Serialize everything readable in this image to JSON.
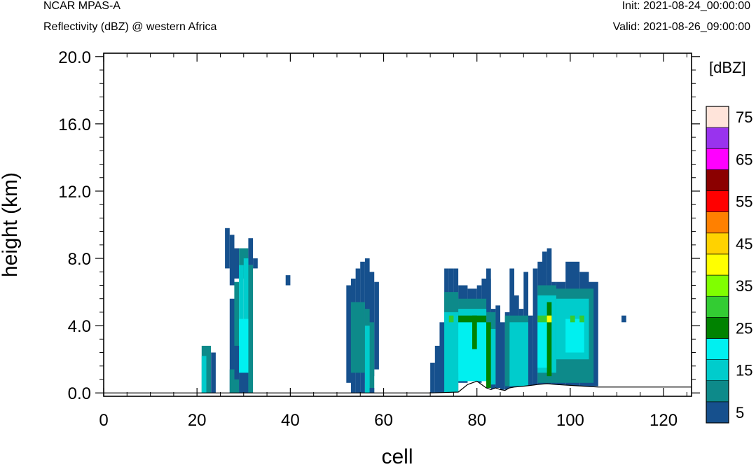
{
  "header": {
    "model": "NCAR MPAS-A",
    "subtitle": "Reflectivity (dBZ) @ western Africa",
    "init": "Init: 2021-08-24_00:00:00",
    "valid": "Valid: 2021-08-26_09:00:00"
  },
  "chart_data": {
    "type": "heatmap",
    "title": "Reflectivity (dBZ) @ western Africa",
    "xlabel": "cell",
    "ylabel": "height (km)",
    "xlim": [
      0,
      126
    ],
    "ylim": [
      -0.2,
      20.2
    ],
    "xticks": [
      "0",
      "20",
      "40",
      "60",
      "80",
      "100",
      "120"
    ],
    "yticks": [
      "0.0",
      "4.0",
      "8.0",
      "12.0",
      "16.0",
      "20.0"
    ],
    "colorbar": {
      "unit": "[dBZ]",
      "levels": [
        5,
        10,
        15,
        20,
        25,
        30,
        35,
        40,
        45,
        50,
        55,
        60,
        65,
        70,
        75
      ],
      "labels": [
        "5",
        "15",
        "25",
        "35",
        "45",
        "55",
        "65",
        "75"
      ],
      "colors": [
        "#16508d",
        "#0d8a8a",
        "#00cccc",
        "#00f0f0",
        "#008200",
        "#33cc33",
        "#80ff00",
        "#ffff00",
        "#ffd200",
        "#ff8000",
        "#ff0000",
        "#8b0000",
        "#ff00ff",
        "#9933ee",
        "#ffe4da"
      ]
    },
    "terrain": [
      [
        0,
        0.0
      ],
      [
        70,
        0.0
      ],
      [
        76,
        0.05
      ],
      [
        78,
        0.5
      ],
      [
        80,
        0.7
      ],
      [
        81,
        0.5
      ],
      [
        82,
        0.3
      ],
      [
        83,
        0.2
      ],
      [
        84,
        0.3
      ],
      [
        85,
        0.2
      ],
      [
        86,
        0.15
      ],
      [
        87,
        0.3
      ],
      [
        88,
        0.35
      ],
      [
        90,
        0.4
      ],
      [
        93,
        0.5
      ],
      [
        95,
        0.55
      ],
      [
        97,
        0.5
      ],
      [
        100,
        0.45
      ],
      [
        103,
        0.4
      ],
      [
        106,
        0.35
      ],
      [
        126,
        0.35
      ]
    ],
    "cells": [
      {
        "x": [
          21,
          23
        ],
        "y": [
          0,
          2.8
        ],
        "dbz": 10
      },
      {
        "x": [
          21,
          22
        ],
        "y": [
          0,
          2.2
        ],
        "dbz": 15
      },
      {
        "x": [
          23,
          24
        ],
        "y": [
          0,
          2.4
        ],
        "dbz": 5
      },
      {
        "x": [
          26,
          27
        ],
        "y": [
          7.4,
          9.8
        ],
        "dbz": 5
      },
      {
        "x": [
          27,
          28
        ],
        "y": [
          6.4,
          9.4
        ],
        "dbz": 5
      },
      {
        "x": [
          28,
          29
        ],
        "y": [
          6.8,
          8.6
        ],
        "dbz": 5
      },
      {
        "x": [
          29,
          31
        ],
        "y": [
          6.8,
          8.6
        ],
        "dbz": 10
      },
      {
        "x": [
          31,
          32
        ],
        "y": [
          7.6,
          9.2
        ],
        "dbz": 5
      },
      {
        "x": [
          32,
          33
        ],
        "y": [
          7.4,
          8.0
        ],
        "dbz": 5
      },
      {
        "x": [
          27,
          28
        ],
        "y": [
          0,
          5.6
        ],
        "dbz": 5
      },
      {
        "x": [
          28,
          29
        ],
        "y": [
          0,
          6.6
        ],
        "dbz": 10
      },
      {
        "x": [
          29,
          30
        ],
        "y": [
          0,
          7.6
        ],
        "dbz": 15
      },
      {
        "x": [
          30,
          31
        ],
        "y": [
          0,
          8.0
        ],
        "dbz": 15
      },
      {
        "x": [
          31,
          32
        ],
        "y": [
          0,
          7.6
        ],
        "dbz": 10
      },
      {
        "x": [
          29,
          31
        ],
        "y": [
          1.2,
          4.4
        ],
        "dbz": 20
      },
      {
        "x": [
          28,
          29
        ],
        "y": [
          0.8,
          2.8
        ],
        "dbz": 5
      },
      {
        "x": [
          27,
          28
        ],
        "y": [
          0,
          1.4
        ],
        "dbz": 10
      },
      {
        "x": [
          29,
          31
        ],
        "y": [
          0,
          1.2
        ],
        "dbz": 5
      },
      {
        "x": [
          39,
          40
        ],
        "y": [
          6.4,
          7.0
        ],
        "dbz": 5
      },
      {
        "x": [
          52,
          53
        ],
        "y": [
          0.6,
          6.4
        ],
        "dbz": 5
      },
      {
        "x": [
          53,
          54
        ],
        "y": [
          0,
          6.8
        ],
        "dbz": 5
      },
      {
        "x": [
          54,
          55
        ],
        "y": [
          0,
          7.4
        ],
        "dbz": 5
      },
      {
        "x": [
          55,
          56
        ],
        "y": [
          0,
          7.8
        ],
        "dbz": 5
      },
      {
        "x": [
          56,
          57
        ],
        "y": [
          0.6,
          8.0
        ],
        "dbz": 5
      },
      {
        "x": [
          57,
          58
        ],
        "y": [
          1,
          7.2
        ],
        "dbz": 5
      },
      {
        "x": [
          58,
          59
        ],
        "y": [
          1.4,
          6.6
        ],
        "dbz": 5
      },
      {
        "x": [
          53,
          56
        ],
        "y": [
          1.2,
          5.4
        ],
        "dbz": 10
      },
      {
        "x": [
          56,
          57
        ],
        "y": [
          1.4,
          5.0
        ],
        "dbz": 10
      },
      {
        "x": [
          57,
          58
        ],
        "y": [
          0,
          4.2
        ],
        "dbz": 10
      },
      {
        "x": [
          56,
          57
        ],
        "y": [
          0,
          4.0
        ],
        "dbz": 15
      },
      {
        "x": [
          57,
          58
        ],
        "y": [
          0,
          0.3
        ],
        "dbz": 5
      },
      {
        "x": [
          70,
          71
        ],
        "y": [
          0,
          1.8
        ],
        "dbz": 5
      },
      {
        "x": [
          71,
          72
        ],
        "y": [
          0,
          2.8
        ],
        "dbz": 5
      },
      {
        "x": [
          72,
          73
        ],
        "y": [
          0,
          4.2
        ],
        "dbz": 5
      },
      {
        "x": [
          73,
          74
        ],
        "y": [
          0,
          7.4
        ],
        "dbz": 5
      },
      {
        "x": [
          74,
          75
        ],
        "y": [
          0,
          7.4
        ],
        "dbz": 5
      },
      {
        "x": [
          75,
          76
        ],
        "y": [
          0,
          7.4
        ],
        "dbz": 5
      },
      {
        "x": [
          76,
          78
        ],
        "y": [
          0.6,
          6.4
        ],
        "dbz": 5
      },
      {
        "x": [
          78,
          80
        ],
        "y": [
          0.8,
          6.2
        ],
        "dbz": 5
      },
      {
        "x": [
          80,
          81
        ],
        "y": [
          0.6,
          6.4
        ],
        "dbz": 5
      },
      {
        "x": [
          81,
          83
        ],
        "y": [
          4.2,
          6.8
        ],
        "dbz": 5
      },
      {
        "x": [
          82,
          83
        ],
        "y": [
          0.3,
          7.4
        ],
        "dbz": 5
      },
      {
        "x": [
          83,
          84
        ],
        "y": [
          0.2,
          5.0
        ],
        "dbz": 5
      },
      {
        "x": [
          84,
          85
        ],
        "y": [
          0.3,
          5.2
        ],
        "dbz": 5
      },
      {
        "x": [
          85,
          86
        ],
        "y": [
          0.2,
          4.2
        ],
        "dbz": 5
      },
      {
        "x": [
          86,
          87
        ],
        "y": [
          0.2,
          4.8
        ],
        "dbz": 5
      },
      {
        "x": [
          87,
          88
        ],
        "y": [
          0.3,
          7.4
        ],
        "dbz": 5
      },
      {
        "x": [
          88,
          89
        ],
        "y": [
          0.3,
          5.8
        ],
        "dbz": 5
      },
      {
        "x": [
          89,
          90
        ],
        "y": [
          0.3,
          5.0
        ],
        "dbz": 5
      },
      {
        "x": [
          90,
          91
        ],
        "y": [
          0.4,
          7.2
        ],
        "dbz": 5
      },
      {
        "x": [
          91,
          92
        ],
        "y": [
          0.4,
          4.6
        ],
        "dbz": 5
      },
      {
        "x": [
          92,
          93
        ],
        "y": [
          0.4,
          7.4
        ],
        "dbz": 5
      },
      {
        "x": [
          93,
          94
        ],
        "y": [
          0.5,
          7.8
        ],
        "dbz": 5
      },
      {
        "x": [
          94,
          95
        ],
        "y": [
          0.5,
          8.4
        ],
        "dbz": 5
      },
      {
        "x": [
          95,
          96
        ],
        "y": [
          0.5,
          8.6
        ],
        "dbz": 5
      },
      {
        "x": [
          96,
          97
        ],
        "y": [
          0.5,
          6.6
        ],
        "dbz": 5
      },
      {
        "x": [
          97,
          99
        ],
        "y": [
          0.5,
          6.6
        ],
        "dbz": 5
      },
      {
        "x": [
          99,
          102
        ],
        "y": [
          0.4,
          7.8
        ],
        "dbz": 5
      },
      {
        "x": [
          102,
          104
        ],
        "y": [
          0.4,
          7.2
        ],
        "dbz": 5
      },
      {
        "x": [
          104,
          106
        ],
        "y": [
          0.4,
          6.6
        ],
        "dbz": 5
      },
      {
        "x": [
          111,
          112
        ],
        "y": [
          4.2,
          4.6
        ],
        "dbz": 5
      },
      {
        "x": [
          73,
          76
        ],
        "y": [
          0,
          6.0
        ],
        "dbz": 10
      },
      {
        "x": [
          76,
          82
        ],
        "y": [
          1.4,
          5.6
        ],
        "dbz": 10
      },
      {
        "x": [
          82,
          84
        ],
        "y": [
          0.6,
          4.8
        ],
        "dbz": 10
      },
      {
        "x": [
          86,
          91
        ],
        "y": [
          0.4,
          4.6
        ],
        "dbz": 10
      },
      {
        "x": [
          93,
          97
        ],
        "y": [
          0.6,
          6.4
        ],
        "dbz": 10
      },
      {
        "x": [
          97,
          105
        ],
        "y": [
          0.6,
          6.2
        ],
        "dbz": 10
      },
      {
        "x": [
          73,
          76
        ],
        "y": [
          0,
          4.8
        ],
        "dbz": 15
      },
      {
        "x": [
          76,
          82
        ],
        "y": [
          1.2,
          5.0
        ],
        "dbz": 15
      },
      {
        "x": [
          82,
          84
        ],
        "y": [
          0.5,
          3.8
        ],
        "dbz": 15
      },
      {
        "x": [
          87,
          91
        ],
        "y": [
          0.4,
          4.2
        ],
        "dbz": 15
      },
      {
        "x": [
          93,
          97
        ],
        "y": [
          1.2,
          5.8
        ],
        "dbz": 15
      },
      {
        "x": [
          97,
          104
        ],
        "y": [
          2.0,
          5.6
        ],
        "dbz": 15
      },
      {
        "x": [
          76,
          82
        ],
        "y": [
          0.7,
          4.2
        ],
        "dbz": 20
      },
      {
        "x": [
          93,
          96
        ],
        "y": [
          1.5,
          4.4
        ],
        "dbz": 20
      },
      {
        "x": [
          99,
          103
        ],
        "y": [
          2.4,
          4.4
        ],
        "dbz": 20
      },
      {
        "x": [
          79,
          80
        ],
        "y": [
          2.6,
          4.6
        ],
        "dbz": 25
      },
      {
        "x": [
          82,
          83
        ],
        "y": [
          0.3,
          4.2
        ],
        "dbz": 25
      },
      {
        "x": [
          95,
          96
        ],
        "y": [
          1.0,
          5.4
        ],
        "dbz": 25
      },
      {
        "x": [
          74,
          75
        ],
        "y": [
          4.2,
          4.6
        ],
        "dbz": 30
      },
      {
        "x": [
          76,
          82
        ],
        "y": [
          4.2,
          4.6
        ],
        "dbz": 25
      },
      {
        "x": [
          93,
          96
        ],
        "y": [
          4.2,
          4.6
        ],
        "dbz": 30
      },
      {
        "x": [
          95,
          96
        ],
        "y": [
          4.2,
          4.6
        ],
        "dbz": 40
      },
      {
        "x": [
          100,
          101
        ],
        "y": [
          4.2,
          4.6
        ],
        "dbz": 30
      },
      {
        "x": [
          102,
          103
        ],
        "y": [
          4.2,
          4.6
        ],
        "dbz": 30
      }
    ]
  }
}
